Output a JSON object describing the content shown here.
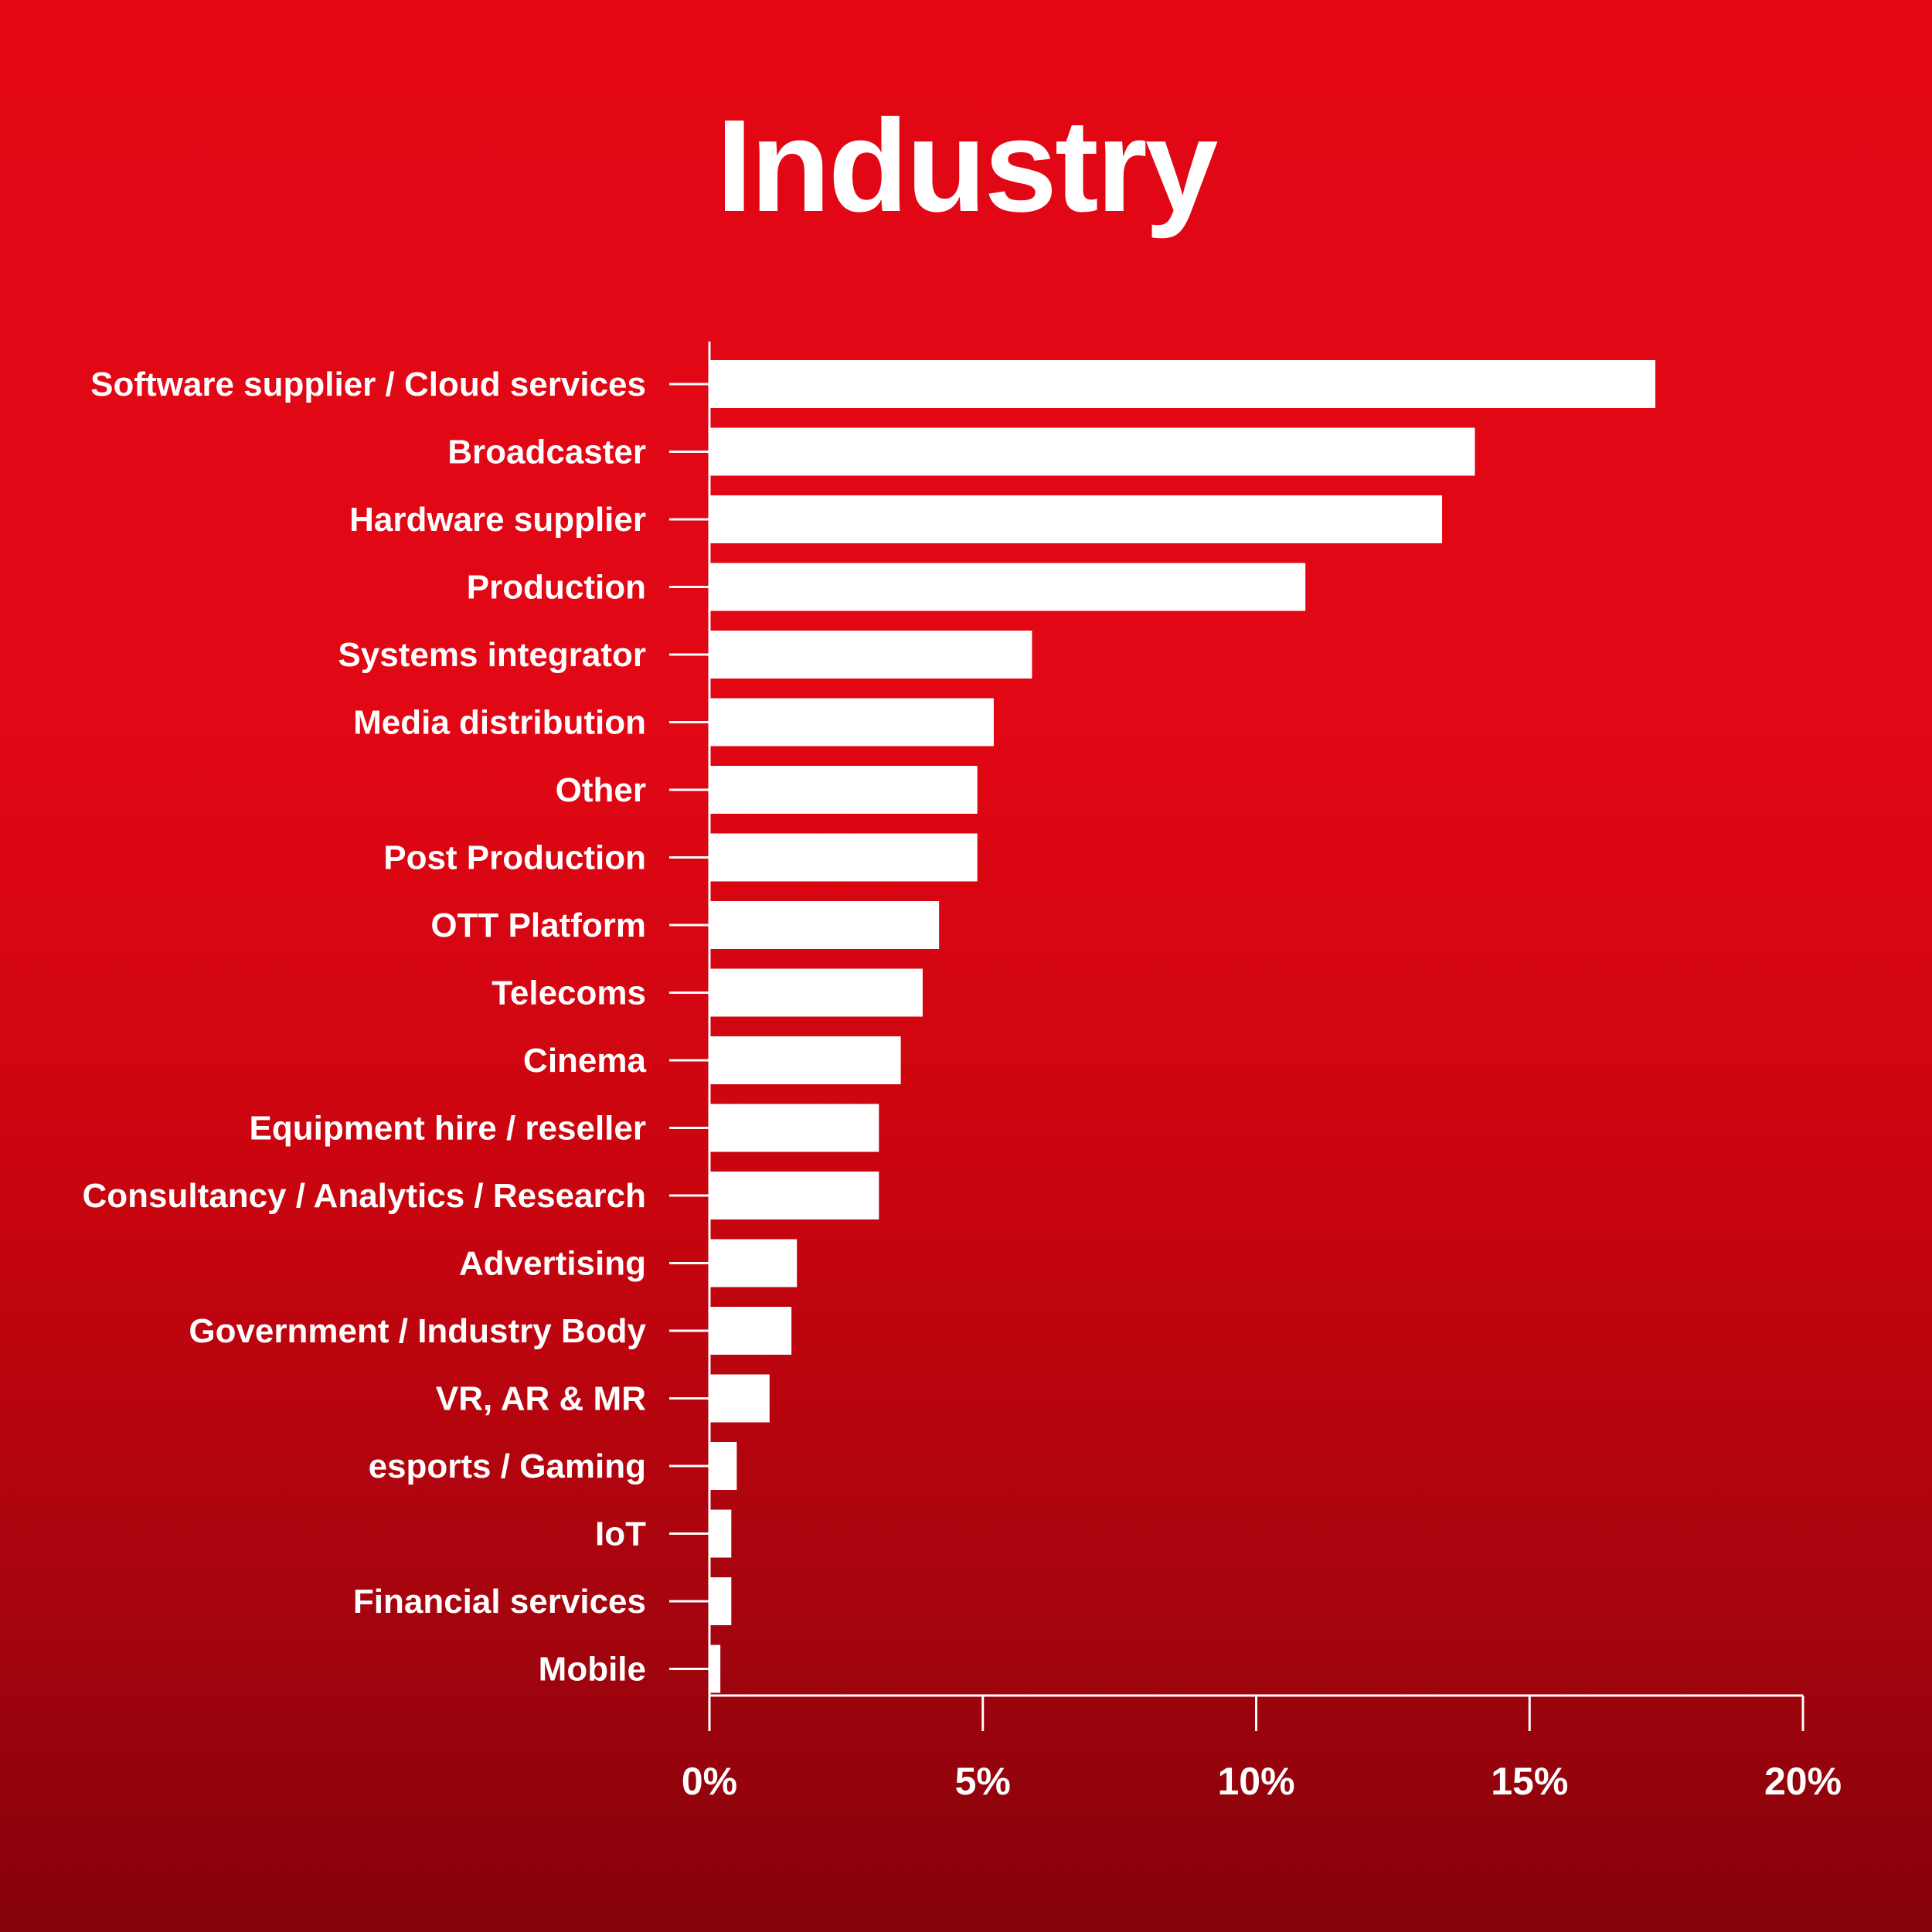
{
  "colors": {
    "background_top": "#e30714",
    "background_bottom": "#86020b",
    "bar": "#ffffff",
    "axis": "#ffffff",
    "text": "#ffffff"
  },
  "chart_data": {
    "type": "bar",
    "orientation": "horizontal",
    "title": "Industry",
    "xlabel": "",
    "ylabel": "",
    "xlim": [
      0,
      20
    ],
    "x_ticks": [
      0,
      5,
      10,
      15,
      20
    ],
    "x_tick_labels": [
      "0%",
      "5%",
      "10%",
      "15%",
      "20%"
    ],
    "grid": false,
    "legend": "none",
    "categories": [
      "Software supplier / Cloud services",
      "Broadcaster",
      "Hardware supplier",
      "Production",
      "Systems integrator",
      "Media distribution",
      "Other",
      "Post Production",
      "OTT Platform",
      "Telecoms",
      "Cinema",
      "Equipment hire / reseller",
      "Consultancy / Analytics / Research",
      "Advertising",
      "Government / Industry Body",
      "VR, AR & MR",
      "esports / Gaming",
      "IoT",
      "Financial services",
      "Mobile"
    ],
    "values": [
      17.3,
      14.0,
      13.4,
      10.9,
      5.9,
      5.2,
      4.9,
      4.9,
      4.2,
      3.9,
      3.5,
      3.1,
      3.1,
      1.6,
      1.5,
      1.1,
      0.5,
      0.4,
      0.4,
      0.2
    ]
  }
}
